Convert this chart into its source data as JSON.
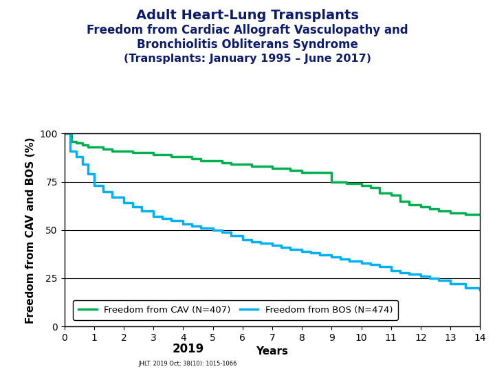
{
  "title_line1": "Adult Heart-Lung Transplants",
  "title_line2": "Freedom from Cardiac Allograft Vasculopathy and\nBronchiolitis Obliterans Syndrome",
  "title_line3": "(Transplants: January 1995 – June 2017)",
  "xlabel": "Years",
  "ylabel": "Freedom from CAV and BOS (%)",
  "title_color": "#0d1b6e",
  "title_fontsize": 14,
  "subtitle_fontsize": 12,
  "sub2_fontsize": 11.5,
  "axis_label_fontsize": 11,
  "tick_fontsize": 10,
  "xlim": [
    0,
    14
  ],
  "ylim": [
    0,
    100
  ],
  "xticks": [
    0,
    1,
    2,
    3,
    4,
    5,
    6,
    7,
    8,
    9,
    10,
    11,
    12,
    13,
    14
  ],
  "yticks": [
    0,
    25,
    50,
    75,
    100
  ],
  "cav_color": "#00b050",
  "bos_color": "#00b0f0",
  "cav_label": "Freedom from CAV (N=407)",
  "bos_label": "Freedom from BOS (N=474)",
  "cav_x": [
    0,
    0.25,
    0.4,
    0.6,
    0.8,
    1.0,
    1.3,
    1.6,
    2.0,
    2.3,
    2.6,
    3.0,
    3.3,
    3.6,
    4.0,
    4.3,
    4.6,
    5.0,
    5.3,
    5.6,
    6.0,
    6.3,
    6.6,
    7.0,
    7.3,
    7.6,
    8.0,
    8.5,
    9.0,
    9.5,
    10.0,
    10.3,
    10.6,
    11.0,
    11.3,
    11.6,
    12.0,
    12.3,
    12.6,
    13.0,
    13.5,
    14.0
  ],
  "cav_y": [
    100,
    96,
    95,
    94,
    93,
    93,
    92,
    91,
    91,
    90,
    90,
    89,
    89,
    88,
    88,
    87,
    86,
    86,
    85,
    84,
    84,
    83,
    83,
    82,
    82,
    81,
    80,
    80,
    75,
    74,
    73,
    72,
    69,
    68,
    65,
    63,
    62,
    61,
    60,
    59,
    58,
    58
  ],
  "bos_x": [
    0,
    0.2,
    0.4,
    0.6,
    0.8,
    1.0,
    1.3,
    1.6,
    2.0,
    2.3,
    2.6,
    3.0,
    3.3,
    3.6,
    4.0,
    4.3,
    4.6,
    5.0,
    5.3,
    5.6,
    6.0,
    6.3,
    6.6,
    7.0,
    7.3,
    7.6,
    8.0,
    8.3,
    8.6,
    9.0,
    9.3,
    9.6,
    10.0,
    10.3,
    10.6,
    11.0,
    11.3,
    11.6,
    12.0,
    12.3,
    12.6,
    13.0,
    13.5,
    14.0
  ],
  "bos_y": [
    100,
    91,
    88,
    84,
    79,
    73,
    70,
    67,
    64,
    62,
    60,
    57,
    56,
    55,
    53,
    52,
    51,
    50,
    49,
    47,
    45,
    44,
    43,
    42,
    41,
    40,
    39,
    38,
    37,
    36,
    35,
    34,
    33,
    32,
    31,
    29,
    28,
    27,
    26,
    25,
    24,
    22,
    20,
    19
  ],
  "legend_loc": "lower left",
  "linewidth": 2.5,
  "background_color": "#ffffff"
}
